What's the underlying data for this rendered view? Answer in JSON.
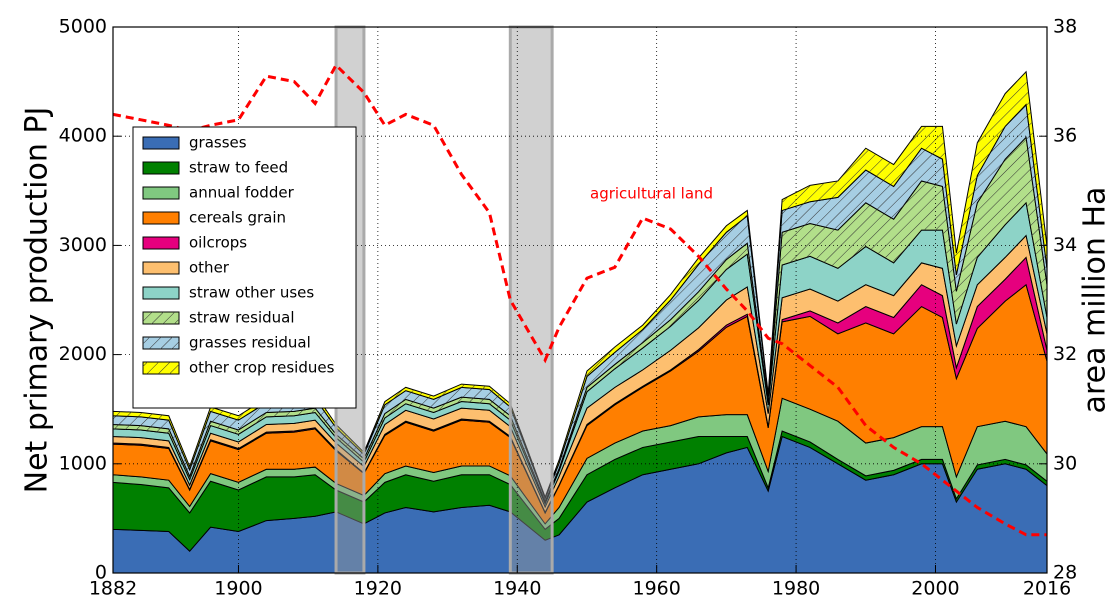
{
  "chart_data": {
    "type": "stacked_area",
    "y_label": "Net primary production PJ",
    "y2_label": "area million Ha",
    "x": [
      1882,
      1886,
      1890,
      1893,
      1896,
      1900,
      1904,
      1908,
      1911,
      1914,
      1918,
      1921,
      1924,
      1928,
      1932,
      1936,
      1939,
      1944,
      1946,
      1950,
      1954,
      1958,
      1962,
      1966,
      1970,
      1973,
      1976,
      1978,
      1982,
      1986,
      1990,
      1994,
      1998,
      2001,
      2003,
      2006,
      2010,
      2013,
      2016
    ],
    "xlim": [
      1882,
      2016
    ],
    "xticks": [
      1882,
      1900,
      1920,
      1940,
      1960,
      1980,
      2000,
      2016
    ],
    "ylim": [
      0,
      5000
    ],
    "yticks": [
      0,
      1000,
      2000,
      3000,
      4000,
      5000
    ],
    "y2lim": [
      28,
      38
    ],
    "y2ticks": [
      28,
      30,
      32,
      34,
      36,
      38
    ],
    "grid": true,
    "legend": "upper left",
    "spans": [
      [
        1914,
        1918
      ],
      [
        1939,
        1945
      ]
    ],
    "series": [
      {
        "name": "grasses",
        "color": "#3a6db5",
        "values": [
          400,
          390,
          380,
          200,
          420,
          380,
          480,
          500,
          520,
          560,
          450,
          550,
          600,
          560,
          600,
          620,
          560,
          300,
          350,
          650,
          780,
          900,
          950,
          1000,
          1100,
          1150,
          750,
          1250,
          1150,
          1000,
          850,
          900,
          1000,
          1000,
          650,
          950,
          1000,
          950,
          800
        ]
      },
      {
        "name": "straw to feed",
        "color": "#008000",
        "values": [
          430,
          420,
          400,
          350,
          420,
          380,
          400,
          380,
          380,
          200,
          200,
          280,
          300,
          280,
          300,
          280,
          250,
          100,
          150,
          250,
          260,
          250,
          250,
          250,
          150,
          100,
          30,
          50,
          50,
          40,
          40,
          40,
          40,
          40,
          30,
          40,
          40,
          40,
          40
        ]
      },
      {
        "name": "annual fodder",
        "color": "#80c880",
        "values": [
          70,
          70,
          70,
          60,
          70,
          70,
          70,
          70,
          70,
          60,
          60,
          80,
          80,
          80,
          80,
          80,
          80,
          50,
          100,
          150,
          150,
          150,
          150,
          180,
          200,
          200,
          150,
          300,
          300,
          350,
          300,
          300,
          300,
          300,
          200,
          350,
          350,
          350,
          250
        ]
      },
      {
        "name": "cereals grain",
        "color": "#ff7f00",
        "values": [
          280,
          290,
          290,
          150,
          300,
          300,
          330,
          340,
          350,
          300,
          200,
          350,
          400,
          380,
          420,
          400,
          350,
          100,
          200,
          300,
          350,
          400,
          500,
          600,
          800,
          900,
          400,
          700,
          850,
          800,
          1100,
          950,
          1100,
          1000,
          900,
          900,
          1100,
          1300,
          850
        ]
      },
      {
        "name": "oilcrops",
        "color": "#e6007e",
        "values": [
          10,
          10,
          10,
          5,
          10,
          10,
          10,
          10,
          10,
          10,
          5,
          10,
          10,
          10,
          10,
          10,
          10,
          5,
          5,
          10,
          10,
          10,
          10,
          15,
          20,
          20,
          10,
          20,
          50,
          100,
          150,
          150,
          200,
          200,
          100,
          200,
          200,
          250,
          100
        ]
      },
      {
        "name": "other",
        "color": "#fdbf6f",
        "values": [
          60,
          60,
          60,
          40,
          60,
          60,
          70,
          70,
          70,
          60,
          60,
          90,
          100,
          100,
          100,
          100,
          90,
          50,
          80,
          150,
          150,
          150,
          180,
          200,
          230,
          250,
          120,
          200,
          200,
          200,
          200,
          200,
          200,
          250,
          200,
          200,
          200,
          200,
          150
        ]
      },
      {
        "name": "straw other uses",
        "color": "#8dd3c7",
        "values": [
          70,
          70,
          70,
          50,
          70,
          70,
          70,
          70,
          70,
          50,
          40,
          60,
          60,
          60,
          60,
          60,
          60,
          30,
          50,
          150,
          170,
          200,
          220,
          250,
          280,
          300,
          80,
          300,
          300,
          300,
          350,
          300,
          300,
          350,
          200,
          250,
          300,
          300,
          150
        ]
      },
      {
        "name": "straw residual",
        "color": "#b2df8a",
        "hatch": true,
        "values": [
          40,
          40,
          40,
          30,
          40,
          40,
          40,
          40,
          40,
          30,
          30,
          40,
          40,
          40,
          40,
          40,
          40,
          20,
          20,
          40,
          40,
          50,
          60,
          80,
          90,
          100,
          30,
          300,
          300,
          350,
          400,
          400,
          450,
          400,
          300,
          500,
          600,
          600,
          300
        ]
      },
      {
        "name": "grasses residual",
        "color": "#a6cee3",
        "hatch": true,
        "values": [
          80,
          80,
          80,
          60,
          90,
          90,
          90,
          90,
          90,
          60,
          40,
          80,
          80,
          80,
          90,
          90,
          80,
          30,
          50,
          100,
          110,
          120,
          180,
          250,
          250,
          250,
          50,
          200,
          200,
          300,
          300,
          300,
          300,
          250,
          150,
          250,
          300,
          300,
          150
        ]
      },
      {
        "name": "other crop residues",
        "color": "#ffff00",
        "hatch": true,
        "values": [
          40,
          40,
          40,
          30,
          40,
          40,
          40,
          40,
          40,
          30,
          20,
          30,
          30,
          30,
          30,
          30,
          30,
          10,
          30,
          50,
          50,
          40,
          50,
          60,
          60,
          50,
          20,
          100,
          150,
          150,
          200,
          200,
          200,
          300,
          200,
          300,
          300,
          300,
          200
        ]
      },
      {
        "name": "agricultural land",
        "color": "#ff0000",
        "axis": "y2",
        "values": [
          36.4,
          36.3,
          36.2,
          36.1,
          36.2,
          36.3,
          37.1,
          37.0,
          36.6,
          37.3,
          36.8,
          36.2,
          36.4,
          36.2,
          35.3,
          34.6,
          33.0,
          31.9,
          32.5,
          33.4,
          33.6,
          34.5,
          34.3,
          33.8,
          33.2,
          32.8,
          32.3,
          32.2,
          31.8,
          31.4,
          30.7,
          30.3,
          30.0,
          29.7,
          29.5,
          29.2,
          28.9,
          28.7,
          28.7
        ]
      }
    ]
  }
}
